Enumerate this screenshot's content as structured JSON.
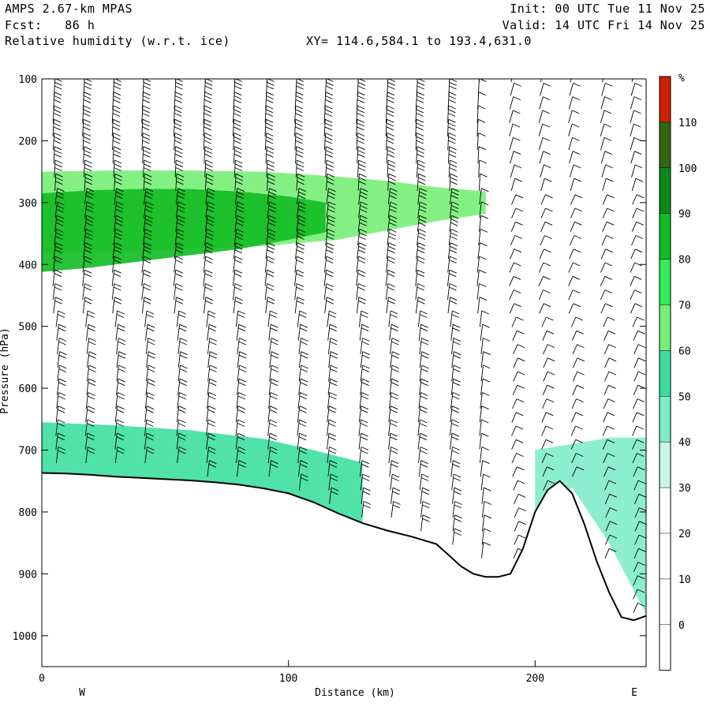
{
  "header": {
    "model": "AMPS 2.67-km MPAS",
    "fcst": "Fcst:   86 h",
    "field": "Relative humidity (w.r.t. ice)",
    "xy": "XY= 114.6,584.1 to 193.4,631.0",
    "init": "Init: 00 UTC Tue 11 Nov 25",
    "valid": "Valid: 14 UTC Fri 14 Nov 25"
  },
  "chart_data": {
    "type": "heatmap",
    "title": "Relative humidity (w.r.t. ice)",
    "xlabel": "Distance (km)",
    "ylabel": "Pressure (hPa)",
    "xlim": [
      0,
      245
    ],
    "ylim": [
      1050,
      100
    ],
    "x_ticks": [
      0,
      100,
      200
    ],
    "y_ticks": [
      100,
      200,
      300,
      400,
      500,
      600,
      700,
      800,
      900,
      1000
    ],
    "direction_labels": {
      "left": "W",
      "right": "E"
    },
    "colorbar": {
      "unit": "%",
      "levels": [
        0,
        10,
        20,
        30,
        40,
        50,
        60,
        70,
        80,
        90,
        100,
        110
      ],
      "colors": [
        "#ffffff",
        "#ffffff",
        "#ffffff",
        "#ffffff",
        "#c6f7e4",
        "#7fecc9",
        "#3ddf9f",
        "#77ee77",
        "#33ee55",
        "#11bb22",
        "#0a8a1a",
        "#336611",
        "#cc2200"
      ]
    },
    "terrain": {
      "x": [
        0,
        10,
        20,
        30,
        40,
        50,
        60,
        70,
        80,
        90,
        100,
        110,
        120,
        130,
        140,
        150,
        160,
        165,
        170,
        175,
        180,
        185,
        190,
        195,
        200,
        205,
        210,
        215,
        220,
        225,
        230,
        235,
        240,
        245
      ],
      "p": [
        737,
        738,
        740,
        743,
        745,
        747,
        749,
        752,
        756,
        762,
        770,
        784,
        802,
        818,
        830,
        840,
        852,
        870,
        888,
        900,
        905,
        905,
        900,
        860,
        800,
        765,
        750,
        770,
        820,
        880,
        930,
        970,
        975,
        968
      ]
    },
    "rh_regions": [
      {
        "name": "upper-cloud",
        "rh": 60,
        "x": [
          0,
          30,
          60,
          90,
          120,
          140,
          160,
          180
        ],
        "p_top": [
          250,
          248,
          248,
          250,
          258,
          265,
          275,
          282
        ],
        "p_bot": [
          380,
          380,
          375,
          370,
          360,
          345,
          330,
          318
        ]
      },
      {
        "name": "upper-core",
        "rh": 80,
        "x": [
          0,
          20,
          40,
          60,
          80,
          100,
          115
        ],
        "p_top": [
          285,
          280,
          278,
          278,
          282,
          290,
          300
        ],
        "p_bot": [
          412,
          405,
          395,
          385,
          375,
          360,
          348
        ]
      },
      {
        "name": "low-moist",
        "rh": 50,
        "x": [
          0,
          30,
          60,
          90,
          110,
          130
        ],
        "p_top": [
          655,
          660,
          668,
          682,
          700,
          720
        ],
        "p_bot": [
          737,
          743,
          749,
          762,
          784,
          818
        ]
      },
      {
        "name": "east-low",
        "rh": 40,
        "x": [
          200,
          215,
          230,
          245
        ],
        "p_top": [
          700,
          690,
          680,
          680
        ],
        "p_bot": [
          800,
          760,
          850,
          965
        ]
      }
    ],
    "wind_columns_km": [
      5,
      17,
      29,
      41,
      54,
      66,
      78,
      91,
      103,
      115,
      128,
      140,
      152,
      165,
      177,
      190,
      202,
      214,
      227,
      239
    ]
  }
}
